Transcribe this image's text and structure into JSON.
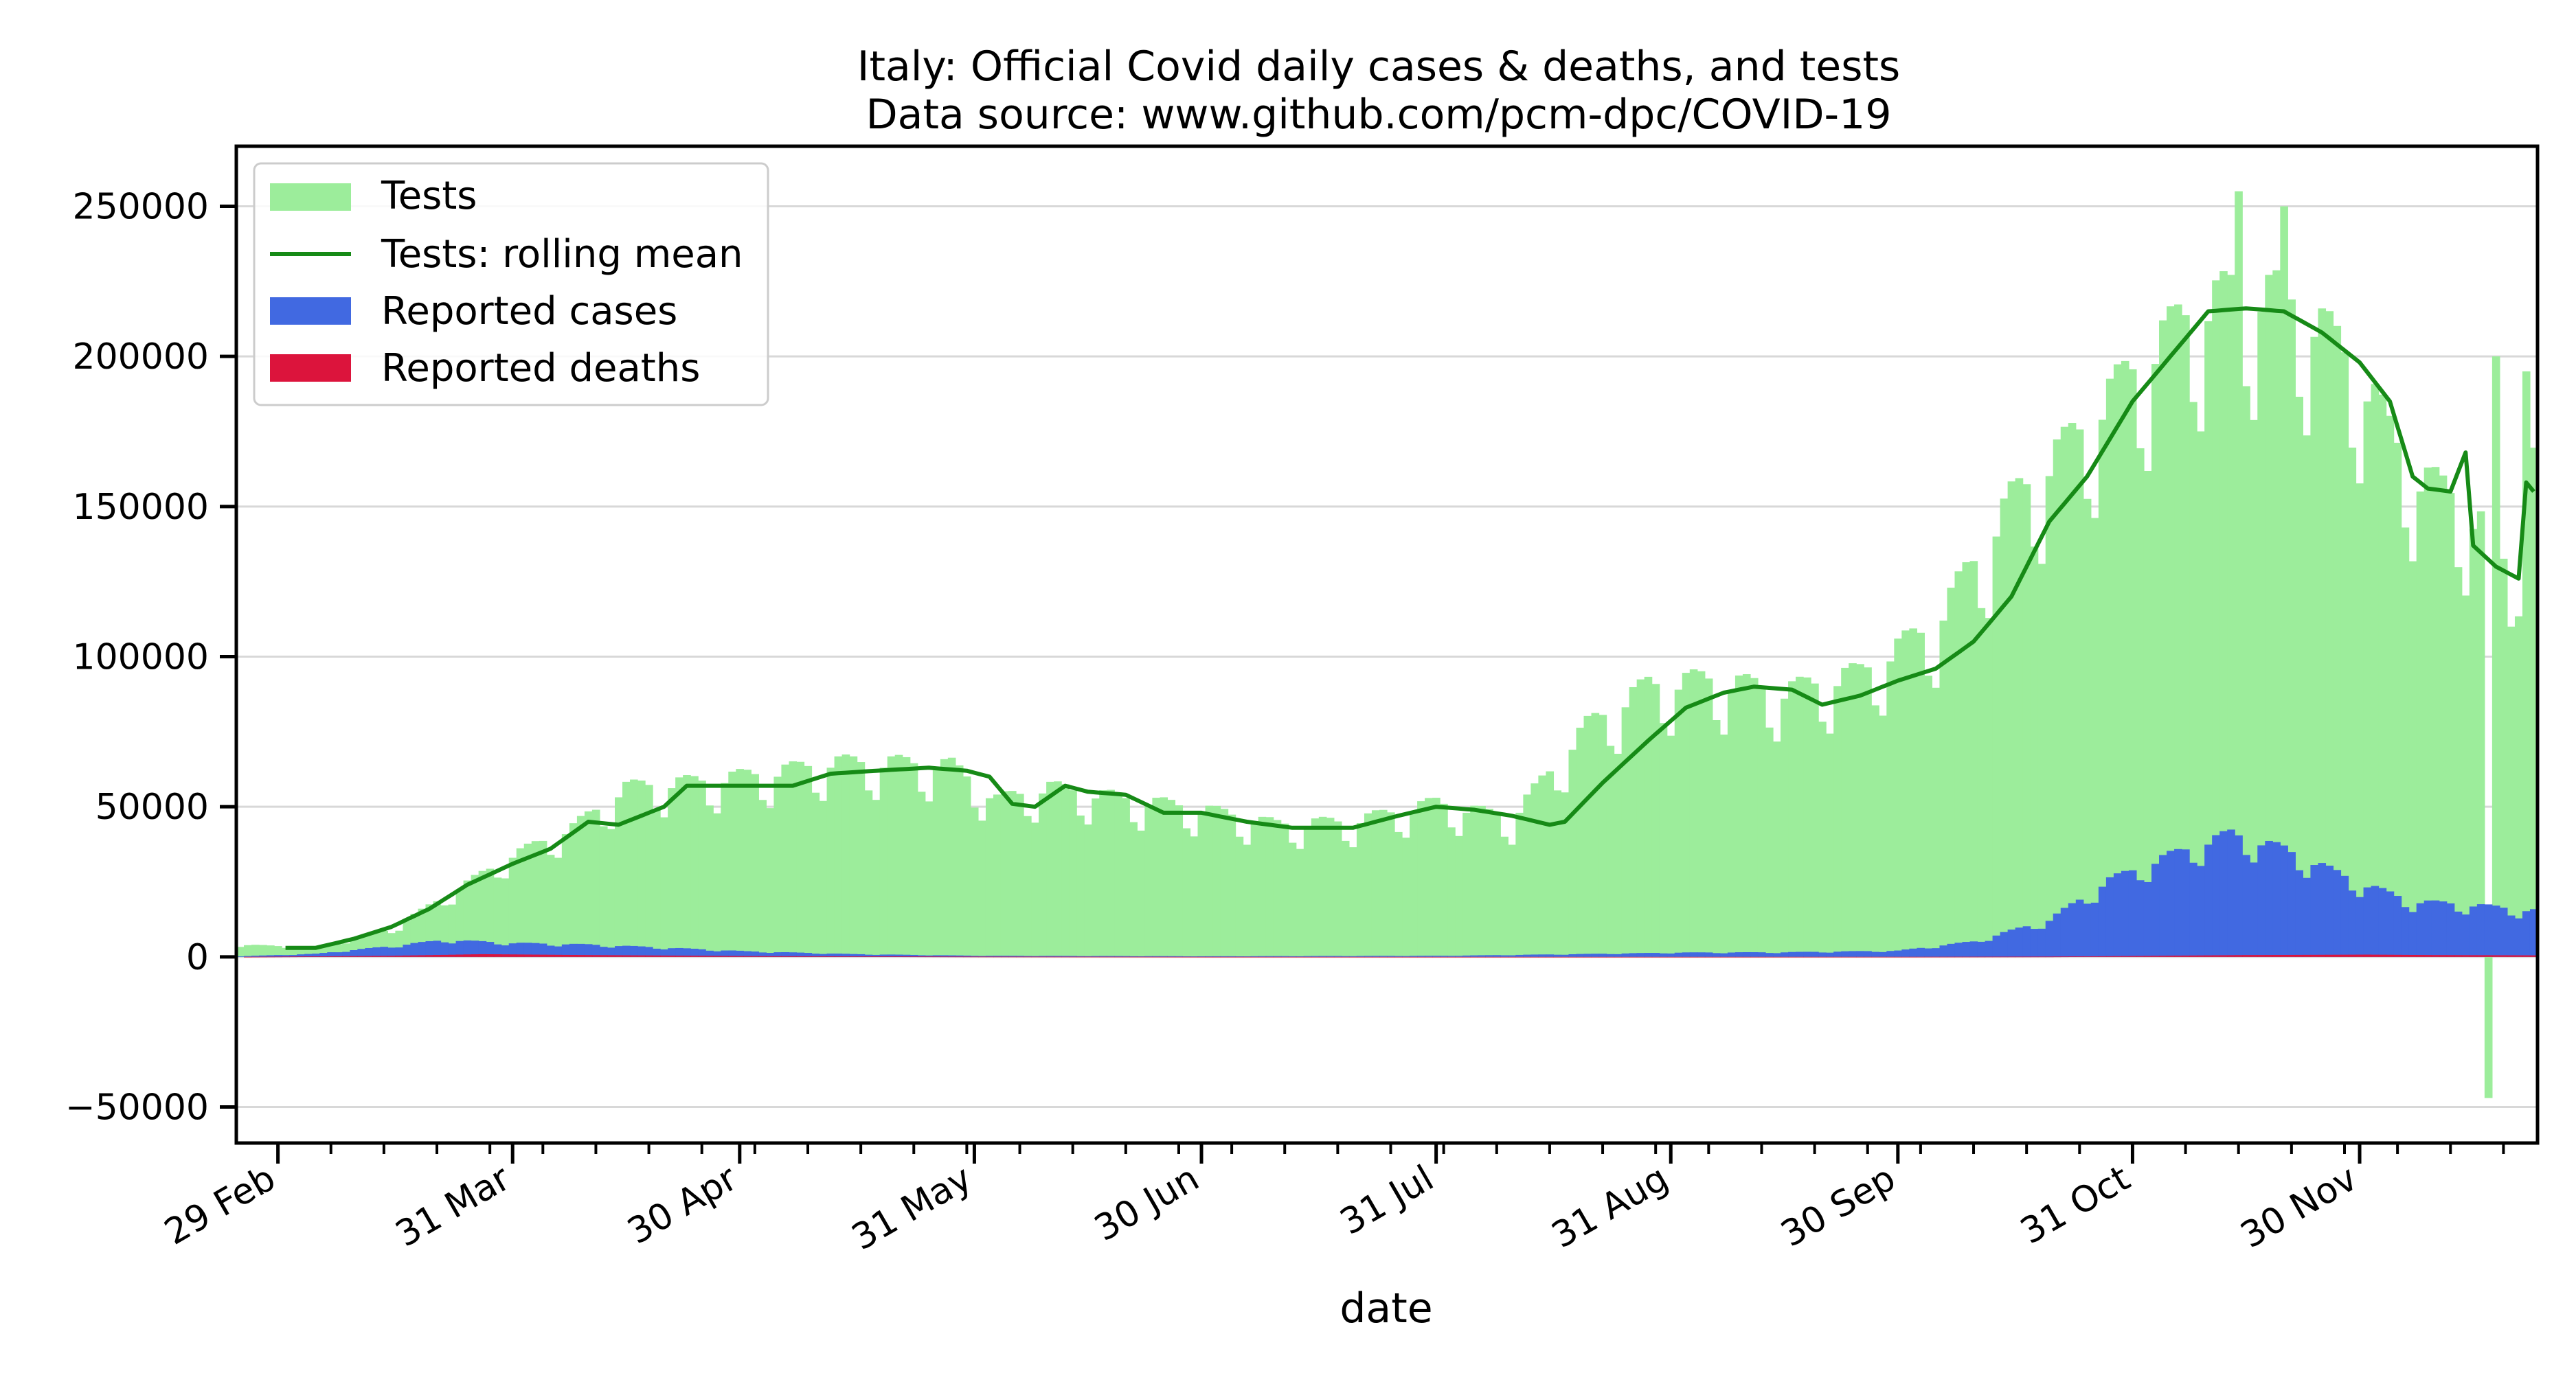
{
  "chart_data": {
    "type": "bar",
    "title": "Italy: Official Covid daily cases & deaths, and tests",
    "subtitle": "Data source: www.github.com/pcm-dpc/COVID-19",
    "xlabel": "date",
    "ylabel": "",
    "x_range": [
      "2020-02-24",
      "2020-12-23"
    ],
    "ylim": [
      -62000,
      270000
    ],
    "y_ticks": [
      -50000,
      0,
      50000,
      100000,
      150000,
      200000,
      250000
    ],
    "y_tick_labels": [
      "−50000",
      "0",
      "50000",
      "100000",
      "150000",
      "200000",
      "250000"
    ],
    "x_ticks": [
      "2020-02-29",
      "2020-03-31",
      "2020-04-30",
      "2020-05-31",
      "2020-06-30",
      "2020-07-31",
      "2020-08-31",
      "2020-09-30",
      "2020-10-31",
      "2020-11-30"
    ],
    "x_tick_labels": [
      "29 Feb",
      "31 Mar",
      "30 Apr",
      "31 May",
      "30 Jun",
      "31 Jul",
      "31 Aug",
      "30 Sep",
      "31 Oct",
      "30 Nov"
    ],
    "grid": "horizontal",
    "legend_position": "top-left",
    "colors": {
      "tests": "#9ced9b",
      "rolling_mean": "#168a16",
      "cases": "#4169e1",
      "deaths": "#dc143c",
      "grid": "#d8d8d8"
    },
    "series": [
      {
        "name": "Tests",
        "kind": "bar",
        "anchors": [
          [
            "2020-02-24",
            4000
          ],
          [
            "2020-03-05",
            3000
          ],
          [
            "2020-03-15",
            9000
          ],
          [
            "2020-03-25",
            24000
          ],
          [
            "2020-03-31",
            33000
          ],
          [
            "2020-04-08",
            42000
          ],
          [
            "2020-04-15",
            55000
          ],
          [
            "2020-04-25",
            57000
          ],
          [
            "2020-05-05",
            60000
          ],
          [
            "2020-05-12",
            63000
          ],
          [
            "2020-05-20",
            63000
          ],
          [
            "2020-05-28",
            62000
          ],
          [
            "2020-06-03",
            51000
          ],
          [
            "2020-06-10",
            55000
          ],
          [
            "2020-06-18",
            52000
          ],
          [
            "2020-06-30",
            48000
          ],
          [
            "2020-07-10",
            43000
          ],
          [
            "2020-07-20",
            44000
          ],
          [
            "2020-07-31",
            50000
          ],
          [
            "2020-08-10",
            45000
          ],
          [
            "2020-08-20",
            75000
          ],
          [
            "2020-08-28",
            88000
          ],
          [
            "2020-09-05",
            90000
          ],
          [
            "2020-09-15",
            86000
          ],
          [
            "2020-09-25",
            92000
          ],
          [
            "2020-10-05",
            108000
          ],
          [
            "2020-10-15",
            148000
          ],
          [
            "2020-10-22",
            165000
          ],
          [
            "2020-10-31",
            190000
          ],
          [
            "2020-11-08",
            210000
          ],
          [
            "2020-11-15",
            216000
          ],
          [
            "2020-11-22",
            212000
          ],
          [
            "2020-11-30",
            190000
          ],
          [
            "2020-12-04",
            170000
          ],
          [
            "2020-12-08",
            155000
          ],
          [
            "2020-12-12",
            150000
          ],
          [
            "2020-12-16",
            140000
          ],
          [
            "2020-12-20",
            125000
          ],
          [
            "2020-12-23",
            160000
          ]
        ],
        "outliers": [
          [
            "2020-11-14",
            255000
          ],
          [
            "2020-11-20",
            250000
          ],
          [
            "2020-12-17",
            -47000
          ],
          [
            "2020-12-18",
            200000
          ],
          [
            "2020-12-22",
            195000
          ]
        ]
      },
      {
        "name": "Tests: rolling mean",
        "kind": "line",
        "anchors": [
          [
            "2020-03-01",
            3000
          ],
          [
            "2020-03-05",
            3000
          ],
          [
            "2020-03-10",
            6000
          ],
          [
            "2020-03-15",
            10000
          ],
          [
            "2020-03-20",
            16000
          ],
          [
            "2020-03-25",
            24000
          ],
          [
            "2020-03-31",
            31000
          ],
          [
            "2020-04-05",
            36000
          ],
          [
            "2020-04-10",
            45000
          ],
          [
            "2020-04-14",
            44000
          ],
          [
            "2020-04-20",
            50000
          ],
          [
            "2020-04-23",
            57000
          ],
          [
            "2020-04-30",
            57000
          ],
          [
            "2020-05-07",
            57000
          ],
          [
            "2020-05-12",
            61000
          ],
          [
            "2020-05-18",
            62000
          ],
          [
            "2020-05-25",
            63000
          ],
          [
            "2020-05-30",
            62000
          ],
          [
            "2020-06-02",
            60000
          ],
          [
            "2020-06-05",
            51000
          ],
          [
            "2020-06-08",
            50000
          ],
          [
            "2020-06-12",
            57000
          ],
          [
            "2020-06-15",
            55000
          ],
          [
            "2020-06-20",
            54000
          ],
          [
            "2020-06-25",
            48000
          ],
          [
            "2020-06-30",
            48000
          ],
          [
            "2020-07-06",
            45000
          ],
          [
            "2020-07-12",
            43000
          ],
          [
            "2020-07-20",
            43000
          ],
          [
            "2020-07-26",
            47000
          ],
          [
            "2020-07-31",
            50000
          ],
          [
            "2020-08-05",
            49000
          ],
          [
            "2020-08-10",
            47000
          ],
          [
            "2020-08-15",
            44000
          ],
          [
            "2020-08-17",
            45000
          ],
          [
            "2020-08-22",
            58000
          ],
          [
            "2020-08-28",
            72000
          ],
          [
            "2020-09-02",
            83000
          ],
          [
            "2020-09-07",
            88000
          ],
          [
            "2020-09-11",
            90000
          ],
          [
            "2020-09-16",
            89000
          ],
          [
            "2020-09-20",
            84000
          ],
          [
            "2020-09-25",
            87000
          ],
          [
            "2020-09-30",
            92000
          ],
          [
            "2020-10-05",
            96000
          ],
          [
            "2020-10-10",
            105000
          ],
          [
            "2020-10-15",
            120000
          ],
          [
            "2020-10-20",
            145000
          ],
          [
            "2020-10-25",
            160000
          ],
          [
            "2020-10-31",
            185000
          ],
          [
            "2020-11-05",
            200000
          ],
          [
            "2020-11-10",
            215000
          ],
          [
            "2020-11-15",
            216000
          ],
          [
            "2020-11-20",
            215000
          ],
          [
            "2020-11-25",
            208000
          ],
          [
            "2020-11-30",
            198000
          ],
          [
            "2020-12-04",
            185000
          ],
          [
            "2020-12-07",
            160000
          ],
          [
            "2020-12-09",
            156000
          ],
          [
            "2020-12-12",
            155000
          ],
          [
            "2020-12-14",
            168000
          ],
          [
            "2020-12-15",
            137000
          ],
          [
            "2020-12-18",
            130000
          ],
          [
            "2020-12-21",
            126000
          ],
          [
            "2020-12-22",
            158000
          ],
          [
            "2020-12-23",
            155000
          ]
        ]
      },
      {
        "name": "Reported cases",
        "kind": "bar",
        "anchors": [
          [
            "2020-02-24",
            200
          ],
          [
            "2020-03-05",
            1000
          ],
          [
            "2020-03-15",
            3500
          ],
          [
            "2020-03-22",
            5500
          ],
          [
            "2020-03-31",
            4500
          ],
          [
            "2020-04-10",
            4000
          ],
          [
            "2020-04-20",
            3000
          ],
          [
            "2020-05-01",
            1800
          ],
          [
            "2020-05-15",
            900
          ],
          [
            "2020-06-01",
            350
          ],
          [
            "2020-07-01",
            200
          ],
          [
            "2020-08-01",
            350
          ],
          [
            "2020-08-20",
            950
          ],
          [
            "2020-09-01",
            1400
          ],
          [
            "2020-09-15",
            1500
          ],
          [
            "2020-09-30",
            2000
          ],
          [
            "2020-10-10",
            5000
          ],
          [
            "2020-10-20",
            12000
          ],
          [
            "2020-10-28",
            25000
          ],
          [
            "2020-11-05",
            33000
          ],
          [
            "2020-11-13",
            40000
          ],
          [
            "2020-11-20",
            35000
          ],
          [
            "2020-11-30",
            24000
          ],
          [
            "2020-12-07",
            18000
          ],
          [
            "2020-12-14",
            17000
          ],
          [
            "2020-12-23",
            15000
          ]
        ]
      },
      {
        "name": "Reported deaths",
        "kind": "bar",
        "anchors": [
          [
            "2020-02-24",
            0
          ],
          [
            "2020-03-15",
            350
          ],
          [
            "2020-03-27",
            900
          ],
          [
            "2020-04-10",
            600
          ],
          [
            "2020-05-01",
            270
          ],
          [
            "2020-06-01",
            80
          ],
          [
            "2020-07-01",
            15
          ],
          [
            "2020-08-01",
            5
          ],
          [
            "2020-09-01",
            10
          ],
          [
            "2020-10-01",
            25
          ],
          [
            "2020-10-20",
            100
          ],
          [
            "2020-11-01",
            300
          ],
          [
            "2020-11-15",
            600
          ],
          [
            "2020-12-01",
            750
          ],
          [
            "2020-12-10",
            600
          ],
          [
            "2020-12-23",
            500
          ]
        ]
      }
    ]
  }
}
